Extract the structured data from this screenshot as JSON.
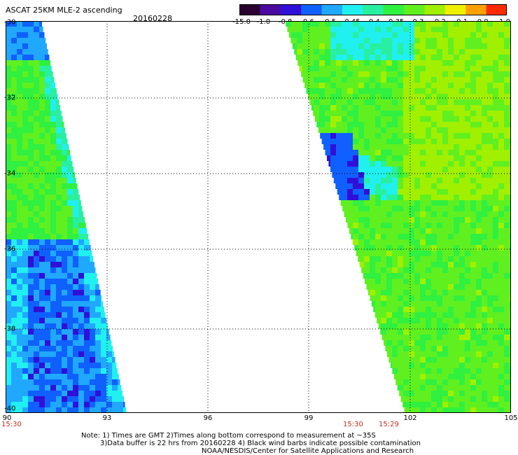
{
  "header": {
    "title": "ASCAT 25KM MLE-2 ascending",
    "date": "20160228"
  },
  "colorbar": {
    "labels": [
      "-15.0",
      "-1.0",
      "-0.8",
      "-0.6",
      "-0.5",
      "-0.45",
      "-0.4",
      "-0.35",
      "-0.3",
      "-0.2",
      "-0.1",
      "0.0",
      "1.0"
    ],
    "colors": [
      "#2a0030",
      "#4a0aa0",
      "#3010d8",
      "#1060ff",
      "#20a8ff",
      "#20f0f0",
      "#28f0a0",
      "#30f040",
      "#60f020",
      "#a0f000",
      "#f0f000",
      "#ffa000",
      "#ff2a00"
    ]
  },
  "map": {
    "lon_range": [
      90,
      105
    ],
    "lat_range": [
      -40,
      -30
    ],
    "lon_ticks": [
      "90",
      "93",
      "96",
      "99",
      "102",
      "105"
    ],
    "lat_ticks": [
      "-30",
      "-32",
      "-34",
      "-36",
      "-38",
      "-40"
    ],
    "times": [
      "15:30",
      "15:30",
      "15:29"
    ]
  },
  "notes": {
    "line1": "Note: 1) Times are GMT 2)Times along bottom correspond to measurement at ~35S",
    "line2": "3)Data buffer is 22 hrs from 20160228 4) Black wind barbs indicate possible contamination",
    "line3": "NOAA/NESDIS/Center for Satellite Applications and Research"
  }
}
